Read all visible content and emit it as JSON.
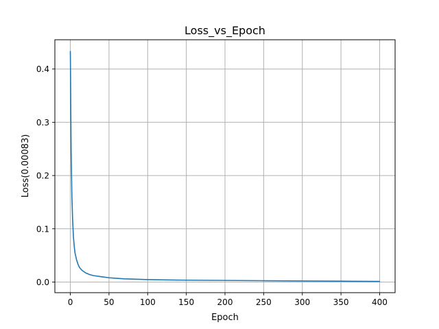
{
  "chart_data": {
    "type": "line",
    "title": "Loss_vs_Epoch",
    "xlabel": "Epoch",
    "ylabel": "Loss(0.00083)",
    "xlim": [
      -20,
      420
    ],
    "ylim": [
      -0.02,
      0.455
    ],
    "xticks": [
      0,
      50,
      100,
      150,
      200,
      250,
      300,
      350,
      400
    ],
    "xtick_labels": [
      "0",
      "50",
      "100",
      "150",
      "200",
      "250",
      "300",
      "350",
      "400"
    ],
    "yticks": [
      0.0,
      0.1,
      0.2,
      0.3,
      0.4
    ],
    "ytick_labels": [
      "0.0",
      "0.1",
      "0.2",
      "0.3",
      "0.4"
    ],
    "grid": true,
    "legend": "none",
    "series": [
      {
        "color": "#1f77b4",
        "x": [
          0,
          1,
          2,
          3,
          4,
          5,
          6,
          8,
          10,
          12,
          15,
          20,
          25,
          30,
          40,
          50,
          60,
          70,
          80,
          90,
          100,
          120,
          150,
          200,
          250,
          300,
          350,
          400
        ],
        "y": [
          0.433,
          0.25,
          0.16,
          0.115,
          0.085,
          0.068,
          0.055,
          0.042,
          0.033,
          0.027,
          0.022,
          0.017,
          0.014,
          0.012,
          0.01,
          0.008,
          0.007,
          0.006,
          0.0055,
          0.005,
          0.0045,
          0.004,
          0.0035,
          0.003,
          0.0025,
          0.002,
          0.0016,
          0.0012
        ]
      }
    ]
  }
}
